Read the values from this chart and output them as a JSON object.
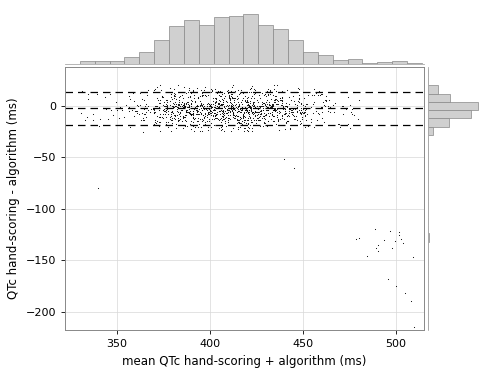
{
  "title": "",
  "xlabel": "mean QTc hand-scoring + algorithm (ms)",
  "ylabel": "QTc hand-scoring - algorithm (ms)",
  "xlim": [
    322,
    515
  ],
  "ylim": [
    -218,
    38
  ],
  "x_ticks": [
    350,
    400,
    450,
    500
  ],
  "y_ticks": [
    -200,
    -150,
    -100,
    -50,
    0
  ],
  "mean_line": -2,
  "upper_loa": 14,
  "lower_loa": -18,
  "scatter_color": "black",
  "scatter_size": 2.5,
  "hist_color": "#d0d0d0",
  "hist_edge_color": "#888888",
  "background_color": "white",
  "grid_color": "#d8d8d8",
  "dashed_line_color": "black",
  "fig_width": 5.0,
  "fig_height": 3.75,
  "dpi": 100,
  "seed": 42
}
